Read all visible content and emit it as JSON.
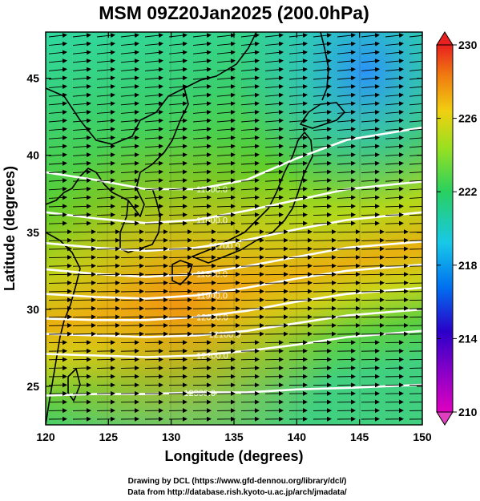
{
  "title": "MSM 09Z20Jan2025 (200.0hPa)",
  "xlabel": "Longitude (degrees)",
  "ylabel": "Latitude  (degrees)",
  "credits": [
    "Drawing by DCL (https://www.gfd-dennou.org/library/dcl/)",
    "Data from http://database.rish.kyoto-u.ac.jp/arch/jmadata/"
  ],
  "chart_data": {
    "type": "heatmap",
    "xlim": [
      120,
      150
    ],
    "ylim": [
      22.5,
      48
    ],
    "xticks": [
      {
        "value": 120,
        "label": "120"
      },
      {
        "value": 125,
        "label": "125"
      },
      {
        "value": 130,
        "label": "130"
      },
      {
        "value": 135,
        "label": "135"
      },
      {
        "value": 140,
        "label": "140"
      },
      {
        "value": 145,
        "label": "145"
      },
      {
        "value": 150,
        "label": "150"
      }
    ],
    "yticks": [
      {
        "value": 25,
        "label": "25"
      },
      {
        "value": 30,
        "label": "30"
      },
      {
        "value": 35,
        "label": "35"
      },
      {
        "value": 40,
        "label": "40"
      },
      {
        "value": 45,
        "label": "45"
      }
    ],
    "colorbar": {
      "min": 210,
      "max": 230,
      "ticks": [
        {
          "value": 210,
          "label": "210"
        },
        {
          "value": 214,
          "label": "214"
        },
        {
          "value": 218,
          "label": "218"
        },
        {
          "value": 222,
          "label": "222"
        },
        {
          "value": 226,
          "label": "226"
        },
        {
          "value": 230,
          "label": "230"
        }
      ],
      "colors": [
        "#e000c0",
        "#2a00c8",
        "#0070f0",
        "#18c8e8",
        "#28d060",
        "#9ae020",
        "#f0d010",
        "#f07810",
        "#e82020"
      ]
    },
    "contours": [
      {
        "label": "11500.0",
        "y": [
          38.9,
          38.4,
          37.8,
          37.8,
          38.4,
          39.8,
          41.0,
          41.8
        ],
        "label_x": 132
      },
      {
        "label": "11600.0",
        "y": [
          36.3,
          35.9,
          35.6,
          35.8,
          36.4,
          37.1,
          37.8,
          38.3
        ],
        "label_x": 132
      },
      {
        "label": "11700.0",
        "y": [
          34.3,
          34.0,
          33.8,
          34.0,
          34.5,
          35.2,
          35.8,
          36.3
        ],
        "label_x": 133
      },
      {
        "label": "11800.0",
        "y": [
          32.6,
          32.3,
          32.1,
          32.3,
          32.8,
          33.4,
          34.0,
          34.4
        ],
        "label_x": 132
      },
      {
        "label": "11900.0",
        "y": [
          31.0,
          30.8,
          30.7,
          30.9,
          31.4,
          32.0,
          32.5,
          32.9
        ],
        "label_x": 132
      },
      {
        "label": "12000.0",
        "y": [
          29.4,
          29.3,
          29.3,
          29.5,
          29.9,
          30.5,
          31.0,
          31.4
        ],
        "label_x": 132
      },
      {
        "label": "12100.0",
        "y": [
          28.4,
          28.3,
          28.2,
          28.3,
          28.6,
          29.1,
          29.6,
          30.0
        ],
        "label_x": 133
      },
      {
        "label": "12200.0",
        "y": [
          27.1,
          27.0,
          26.9,
          27.0,
          27.3,
          27.7,
          28.2,
          28.6
        ],
        "label_x": 132
      },
      {
        "label": "12300.0",
        "y": [
          24.4,
          24.5,
          24.5,
          24.6,
          24.6,
          24.8,
          24.9,
          25.1
        ],
        "label_x": 131
      }
    ],
    "contour_x": [
      120,
      124,
      128,
      132,
      136,
      140,
      144,
      150
    ]
  }
}
